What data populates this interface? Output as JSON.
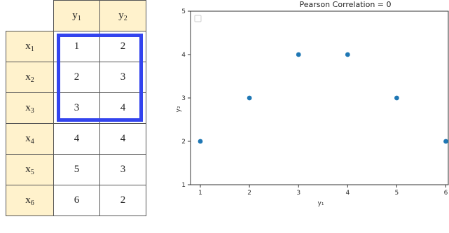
{
  "table": {
    "col_headers": [
      {
        "base": "y",
        "sub": "1"
      },
      {
        "base": "y",
        "sub": "2"
      }
    ],
    "rows": [
      {
        "base": "x",
        "sub": "1",
        "values": [
          "1",
          "2"
        ]
      },
      {
        "base": "x",
        "sub": "2",
        "values": [
          "2",
          "3"
        ]
      },
      {
        "base": "x",
        "sub": "3",
        "values": [
          "3",
          "4"
        ]
      },
      {
        "base": "x",
        "sub": "4",
        "values": [
          "4",
          "4"
        ]
      },
      {
        "base": "x",
        "sub": "5",
        "values": [
          "5",
          "3"
        ]
      },
      {
        "base": "x",
        "sub": "6",
        "values": [
          "6",
          "2"
        ]
      }
    ],
    "header_bg": "#fff2cc",
    "highlight_color": "#3344ee"
  },
  "chart_data": {
    "type": "scatter",
    "title": "Pearson Correlation = 0",
    "xlabel": "y₁",
    "ylabel": "y₂",
    "x": [
      1,
      2,
      3,
      4,
      5,
      6
    ],
    "y": [
      2,
      3,
      4,
      4,
      3,
      2
    ],
    "xticks": [
      "1",
      "2",
      "3",
      "4",
      "5",
      "6"
    ],
    "yticks": [
      "1",
      "2",
      "3",
      "4",
      "5"
    ],
    "xlim": [
      0.8,
      6.05
    ],
    "ylim": [
      1,
      5
    ],
    "grid": false,
    "legend": "top-left, empty",
    "marker_color": "#1f77b4"
  }
}
